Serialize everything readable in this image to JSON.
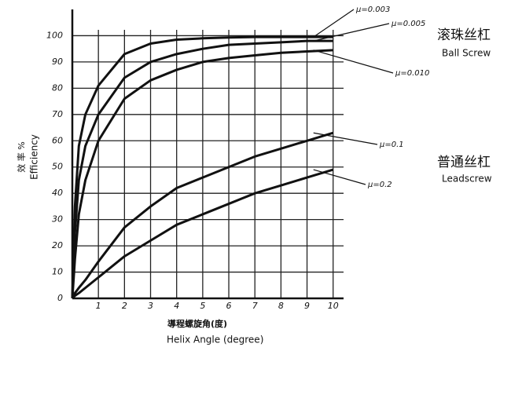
{
  "chart_data": {
    "type": "line",
    "x": [
      0,
      0.1,
      0.25,
      0.5,
      1,
      2,
      3,
      4,
      5,
      6,
      7,
      8,
      9,
      10
    ],
    "series": [
      {
        "name": "μ=0.003",
        "color": "#111111",
        "values": [
          0,
          35,
          58,
          70,
          81,
          93,
          97,
          98.5,
          99,
          99.3,
          99.5,
          99.5,
          99.5,
          99.5
        ]
      },
      {
        "name": "μ=0.005",
        "color": "#111111",
        "values": [
          0,
          25,
          45,
          58,
          70,
          84,
          90,
          93,
          95,
          96.5,
          97,
          97.5,
          98,
          98
        ]
      },
      {
        "name": "μ=0.010",
        "color": "#111111",
        "values": [
          0,
          15,
          32,
          45,
          60,
          76,
          83,
          87,
          90,
          91.5,
          92.5,
          93.5,
          94,
          94.5
        ]
      },
      {
        "name": "μ=0.1",
        "color": "#111111",
        "values": [
          0,
          2,
          4,
          7,
          14,
          27,
          35,
          42,
          46,
          50,
          54,
          57,
          60,
          63
        ]
      },
      {
        "name": "μ=0.2",
        "color": "#111111",
        "values": [
          0,
          1,
          2,
          4,
          8,
          16,
          22,
          28,
          32,
          36,
          40,
          43,
          46,
          49
        ]
      }
    ],
    "xlim": [
      0,
      10.4
    ],
    "ylim": [
      0,
      110
    ],
    "xticks": [
      1,
      2,
      3,
      4,
      5,
      6,
      7,
      8,
      9,
      10
    ],
    "yticks": [
      0,
      10,
      20,
      30,
      40,
      50,
      60,
      70,
      80,
      90,
      100
    ],
    "grid": true,
    "y_label": "效 率 %",
    "y_label_en": "Efficiency",
    "x_label": "導程螺旋角(度)",
    "x_label_en": "Helix Angle (degree)",
    "annotations": [
      {
        "title": "滚珠丝杠",
        "subtitle": "Ball Screw"
      },
      {
        "title": "普通丝杠",
        "subtitle": "Leadscrew"
      }
    ]
  }
}
